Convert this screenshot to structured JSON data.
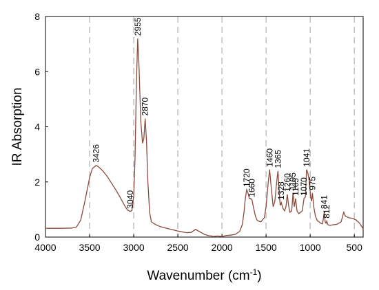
{
  "chart_data": {
    "type": "line",
    "xlabel": "Wavenumber (cm",
    "xlabel_sup": "-1",
    "xlabel_close": ")",
    "ylabel": "IR Absorption",
    "xlim": [
      4000,
      400
    ],
    "x_reversed": true,
    "ylim": [
      0,
      8
    ],
    "xticks": [
      4000,
      3500,
      3000,
      2500,
      2000,
      1500,
      1000,
      500
    ],
    "yticks": [
      0,
      2,
      4,
      6,
      8
    ],
    "grid": "vertical dashed",
    "line_color": "#8B4A3C",
    "grid_color": "#bbbbbb",
    "series": [
      {
        "x": [
          4000,
          3800,
          3700,
          3650,
          3600,
          3550,
          3500,
          3470,
          3426,
          3400,
          3350,
          3300,
          3250,
          3200,
          3150,
          3100,
          3070,
          3040,
          3020,
          3000,
          2985,
          2970,
          2955,
          2940,
          2920,
          2900,
          2885,
          2870,
          2855,
          2840,
          2820,
          2800,
          2750,
          2700,
          2600,
          2500,
          2400,
          2350,
          2300,
          2200,
          2150,
          2120,
          2100,
          2050,
          2000,
          1950,
          1900,
          1850,
          1800,
          1770,
          1750,
          1735,
          1720,
          1705,
          1690,
          1675,
          1660,
          1645,
          1620,
          1600,
          1560,
          1520,
          1500,
          1475,
          1460,
          1445,
          1420,
          1400,
          1380,
          1365,
          1350,
          1340,
          1328,
          1310,
          1290,
          1275,
          1260,
          1245,
          1230,
          1210,
          1195,
          1180,
          1165,
          1150,
          1130,
          1110,
          1090,
          1070,
          1055,
          1041,
          1025,
          1010,
          995,
          985,
          975,
          960,
          940,
          920,
          900,
          880,
          860,
          850,
          841,
          830,
          820,
          812,
          800,
          780,
          750,
          700,
          650,
          620,
          600,
          560,
          520,
          480,
          440,
          420,
          400
        ],
        "y": [
          0.32,
          0.32,
          0.33,
          0.36,
          0.62,
          1.35,
          2.15,
          2.48,
          2.6,
          2.55,
          2.4,
          2.2,
          1.95,
          1.7,
          1.42,
          1.12,
          0.98,
          0.93,
          0.97,
          1.5,
          2.9,
          5.5,
          7.2,
          6.2,
          4.2,
          3.4,
          3.6,
          4.3,
          3.5,
          2.05,
          0.9,
          0.55,
          0.45,
          0.38,
          0.3,
          0.22,
          0.16,
          0.17,
          0.28,
          0.1,
          0.05,
          0.04,
          0.02,
          0.04,
          0.02,
          0.06,
          0.07,
          0.1,
          0.2,
          0.45,
          0.9,
          1.4,
          1.72,
          1.6,
          1.4,
          1.4,
          1.35,
          1.1,
          0.75,
          0.6,
          0.55,
          0.7,
          1.1,
          2.0,
          2.45,
          1.9,
          1.1,
          1.3,
          2.0,
          2.4,
          1.6,
          1.15,
          1.25,
          1.05,
          0.95,
          1.1,
          1.55,
          1.15,
          0.9,
          0.95,
          1.6,
          1.1,
          1.4,
          0.95,
          0.85,
          0.9,
          0.95,
          1.4,
          1.45,
          2.45,
          2.3,
          2.0,
          1.45,
          1.3,
          1.6,
          1.1,
          0.75,
          0.6,
          0.55,
          0.5,
          0.48,
          0.7,
          0.92,
          0.55,
          0.5,
          0.58,
          0.45,
          0.42,
          0.44,
          0.46,
          0.55,
          0.9,
          0.75,
          0.7,
          0.68,
          0.62,
          0.5,
          0.4,
          0.3
        ]
      }
    ],
    "annotations": [
      {
        "label": "3426",
        "x": 3426,
        "y": 2.6
      },
      {
        "label": "3040",
        "x": 3040,
        "y": 0.93
      },
      {
        "label": "2955",
        "x": 2955,
        "y": 7.2
      },
      {
        "label": "2870",
        "x": 2870,
        "y": 4.3
      },
      {
        "label": "1720",
        "x": 1720,
        "y": 1.72
      },
      {
        "label": "1660",
        "x": 1660,
        "y": 1.35
      },
      {
        "label": "1460",
        "x": 1460,
        "y": 2.45
      },
      {
        "label": "1365",
        "x": 1365,
        "y": 2.4
      },
      {
        "label": "1328",
        "x": 1328,
        "y": 1.25
      },
      {
        "label": "1260",
        "x": 1260,
        "y": 1.55
      },
      {
        "label": "1195",
        "x": 1195,
        "y": 1.6
      },
      {
        "label": "1165",
        "x": 1165,
        "y": 1.4
      },
      {
        "label": "1070",
        "x": 1070,
        "y": 1.4
      },
      {
        "label": "1041",
        "x": 1041,
        "y": 2.45
      },
      {
        "label": "975",
        "x": 975,
        "y": 1.6
      },
      {
        "label": "841",
        "x": 841,
        "y": 0.92
      },
      {
        "label": "812",
        "x": 812,
        "y": 0.58
      }
    ]
  }
}
